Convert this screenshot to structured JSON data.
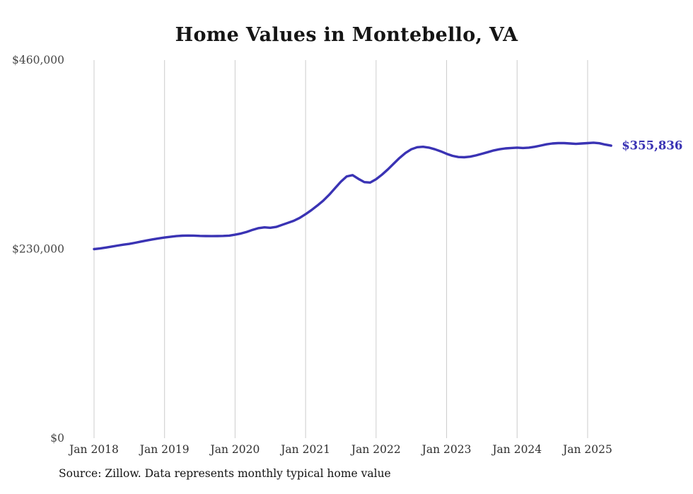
{
  "title": "Home Values in Montebello, VA",
  "source_note": "Source: Zillow. Data represents monthly typical home value",
  "final_value_label": "$355,836",
  "colors": {
    "line": "#3a33b4",
    "grid": "#cccccc",
    "annotation": "#3a33b4",
    "background": "#ffffff"
  },
  "chart_data": {
    "type": "line",
    "title": "Home Values in Montebello, VA",
    "xlabel": "",
    "ylabel": "",
    "ylim": [
      0,
      460000
    ],
    "grid": "vertical-only",
    "legend": "none",
    "y_ticks": [
      {
        "value": 0,
        "label": "$0"
      },
      {
        "value": 230000,
        "label": "$230,000"
      },
      {
        "value": 460000,
        "label": "$460,000"
      }
    ],
    "x_ticks": [
      "Jan 2018",
      "Jan 2019",
      "Jan 2020",
      "Jan 2021",
      "Jan 2022",
      "Jan 2023",
      "Jan 2024",
      "Jan 2025"
    ],
    "series": [
      {
        "name": "Typical home value",
        "start": "Jan 2018",
        "frequency": "monthly",
        "values": [
          230000,
          230800,
          231900,
          233100,
          234300,
          235400,
          236400,
          237700,
          239200,
          240600,
          241900,
          243100,
          244100,
          245000,
          245800,
          246300,
          246500,
          246400,
          246100,
          245900,
          245800,
          245900,
          246100,
          246400,
          247500,
          249000,
          251000,
          253500,
          255500,
          256500,
          256000,
          257000,
          259500,
          262000,
          264500,
          268000,
          272500,
          277500,
          283000,
          289000,
          296000,
          304000,
          312000,
          318500,
          320000,
          315500,
          311500,
          311000,
          315000,
          320500,
          327000,
          334000,
          341000,
          347000,
          351500,
          354000,
          354500,
          353500,
          351500,
          349000,
          346000,
          343500,
          342000,
          341800,
          342500,
          344000,
          346000,
          348000,
          350000,
          351500,
          352500,
          353000,
          353500,
          353000,
          353500,
          354500,
          356000,
          357500,
          358500,
          359000,
          359000,
          358500,
          358000,
          358500,
          359000,
          359500,
          358800,
          357200,
          355836
        ]
      }
    ],
    "annotation": {
      "text": "$355,836",
      "value": 355836,
      "position": "end-of-line"
    }
  }
}
